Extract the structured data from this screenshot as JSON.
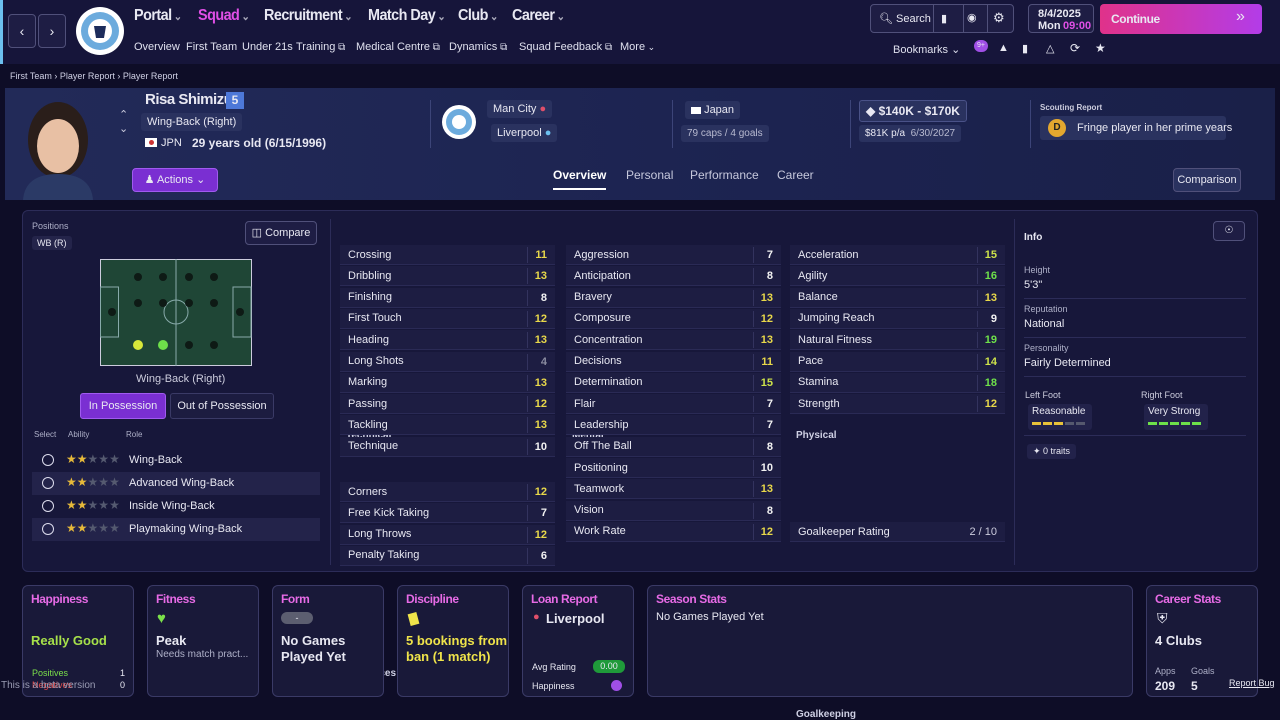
{
  "nav": {
    "menu": [
      "Portal",
      "Squad",
      "Recruitment",
      "Match Day",
      "Club",
      "Career"
    ],
    "submenu": [
      "Overview",
      "First Team",
      "Under 21s",
      "Training",
      "Medical Centre",
      "Dynamics",
      "Squad Feedback",
      "More"
    ],
    "search": "Search",
    "date": "8/4/2025",
    "weekday": "Mon",
    "time": "09:00",
    "continue": "Continue",
    "bookmarks": "Bookmarks",
    "badge": "9+"
  },
  "breadcrumb": [
    "First Team",
    "Player Report",
    "Player Report"
  ],
  "player": {
    "name": "Risa Shimizu",
    "number": "5",
    "position": "Wing-Back (Right)",
    "nation_code": "JPN",
    "age": "29 years old (6/15/1996)",
    "club": "Man City",
    "loan_club": "Liverpool",
    "nation": "Japan",
    "caps": "79 caps / 4 goals",
    "value": "$140K - $170K",
    "wage": "$81K p/a",
    "contract": "6/30/2027",
    "scouting_title": "Scouting Report",
    "scouting_grade": "D",
    "scouting_text": "Fringe player in her prime years",
    "actions": "Actions"
  },
  "tabs": [
    "Overview",
    "Personal",
    "Performance",
    "Career"
  ],
  "comparison": "Comparison",
  "positions": {
    "title": "Positions",
    "tag": "WB (R)",
    "compare": "Compare",
    "pitch_label": "Wing-Back (Right)",
    "toggles": [
      "In Possession",
      "Out of Possession"
    ],
    "headers": [
      "Select",
      "Ability",
      "Role"
    ],
    "roles": [
      {
        "name": "Wing-Back",
        "stars": 2
      },
      {
        "name": "Advanced Wing-Back",
        "stars": 2
      },
      {
        "name": "Inside Wing-Back",
        "stars": 2
      },
      {
        "name": "Playmaking Wing-Back",
        "stars": 2
      }
    ]
  },
  "attributes": {
    "technical": {
      "title": "Technical",
      "rows": [
        [
          "Crossing",
          11
        ],
        [
          "Dribbling",
          13
        ],
        [
          "Finishing",
          8
        ],
        [
          "First Touch",
          12
        ],
        [
          "Heading",
          13
        ],
        [
          "Long Shots",
          4
        ],
        [
          "Marking",
          13
        ],
        [
          "Passing",
          12
        ],
        [
          "Tackling",
          13
        ],
        [
          "Technique",
          10
        ]
      ]
    },
    "set_pieces": {
      "title": "Set Pieces",
      "rows": [
        [
          "Corners",
          12
        ],
        [
          "Free Kick Taking",
          7
        ],
        [
          "Long Throws",
          12
        ],
        [
          "Penalty Taking",
          6
        ]
      ]
    },
    "mental": {
      "title": "Mental",
      "rows": [
        [
          "Aggression",
          7
        ],
        [
          "Anticipation",
          8
        ],
        [
          "Bravery",
          13
        ],
        [
          "Composure",
          12
        ],
        [
          "Concentration",
          13
        ],
        [
          "Decisions",
          11
        ],
        [
          "Determination",
          15
        ],
        [
          "Flair",
          7
        ],
        [
          "Leadership",
          7
        ],
        [
          "Off The Ball",
          8
        ],
        [
          "Positioning",
          10
        ],
        [
          "Teamwork",
          13
        ],
        [
          "Vision",
          8
        ],
        [
          "Work Rate",
          12
        ]
      ]
    },
    "physical": {
      "title": "Physical",
      "rows": [
        [
          "Acceleration",
          15
        ],
        [
          "Agility",
          16
        ],
        [
          "Balance",
          13
        ],
        [
          "Jumping Reach",
          9
        ],
        [
          "Natural Fitness",
          19
        ],
        [
          "Pace",
          14
        ],
        [
          "Stamina",
          18
        ],
        [
          "Strength",
          12
        ]
      ]
    },
    "goalkeeping": {
      "title": "Goalkeeping",
      "rows": [
        [
          "Goalkeeper Rating",
          "2 / 10"
        ]
      ]
    }
  },
  "info": {
    "title": "Info",
    "fields": [
      {
        "label": "Height",
        "value": "5'3\""
      },
      {
        "label": "Reputation",
        "value": "National"
      },
      {
        "label": "Personality",
        "value": "Fairly Determined"
      }
    ],
    "left_foot": {
      "label": "Left Foot",
      "value": "Reasonable",
      "level": 3
    },
    "right_foot": {
      "label": "Right Foot",
      "value": "Very Strong",
      "level": 5
    },
    "traits": "0 traits"
  },
  "cards": {
    "happiness": {
      "title": "Happiness",
      "value": "Really Good",
      "positives_label": "Positives",
      "positives": "1",
      "negatives_label": "Negatives",
      "negatives": "0"
    },
    "fitness": {
      "title": "Fitness",
      "value": "Peak",
      "note": "Needs match pract..."
    },
    "form": {
      "title": "Form",
      "badge": "-",
      "value": "No Games Played Yet"
    },
    "discipline": {
      "title": "Discipline",
      "value": "5 bookings from ban (1 match)"
    },
    "loan": {
      "title": "Loan Report",
      "club": "Liverpool",
      "rating_label": "Avg Rating",
      "rating": "0.00",
      "happiness_label": "Happiness"
    },
    "season": {
      "title": "Season Stats",
      "value": "No Games Played Yet"
    },
    "career": {
      "title": "Career Stats",
      "value": "4 Clubs",
      "apps_label": "Apps",
      "apps": "209",
      "goals_label": "Goals",
      "goals": "5"
    }
  },
  "beta": "This is a beta version",
  "report_bug": "Report Bug"
}
